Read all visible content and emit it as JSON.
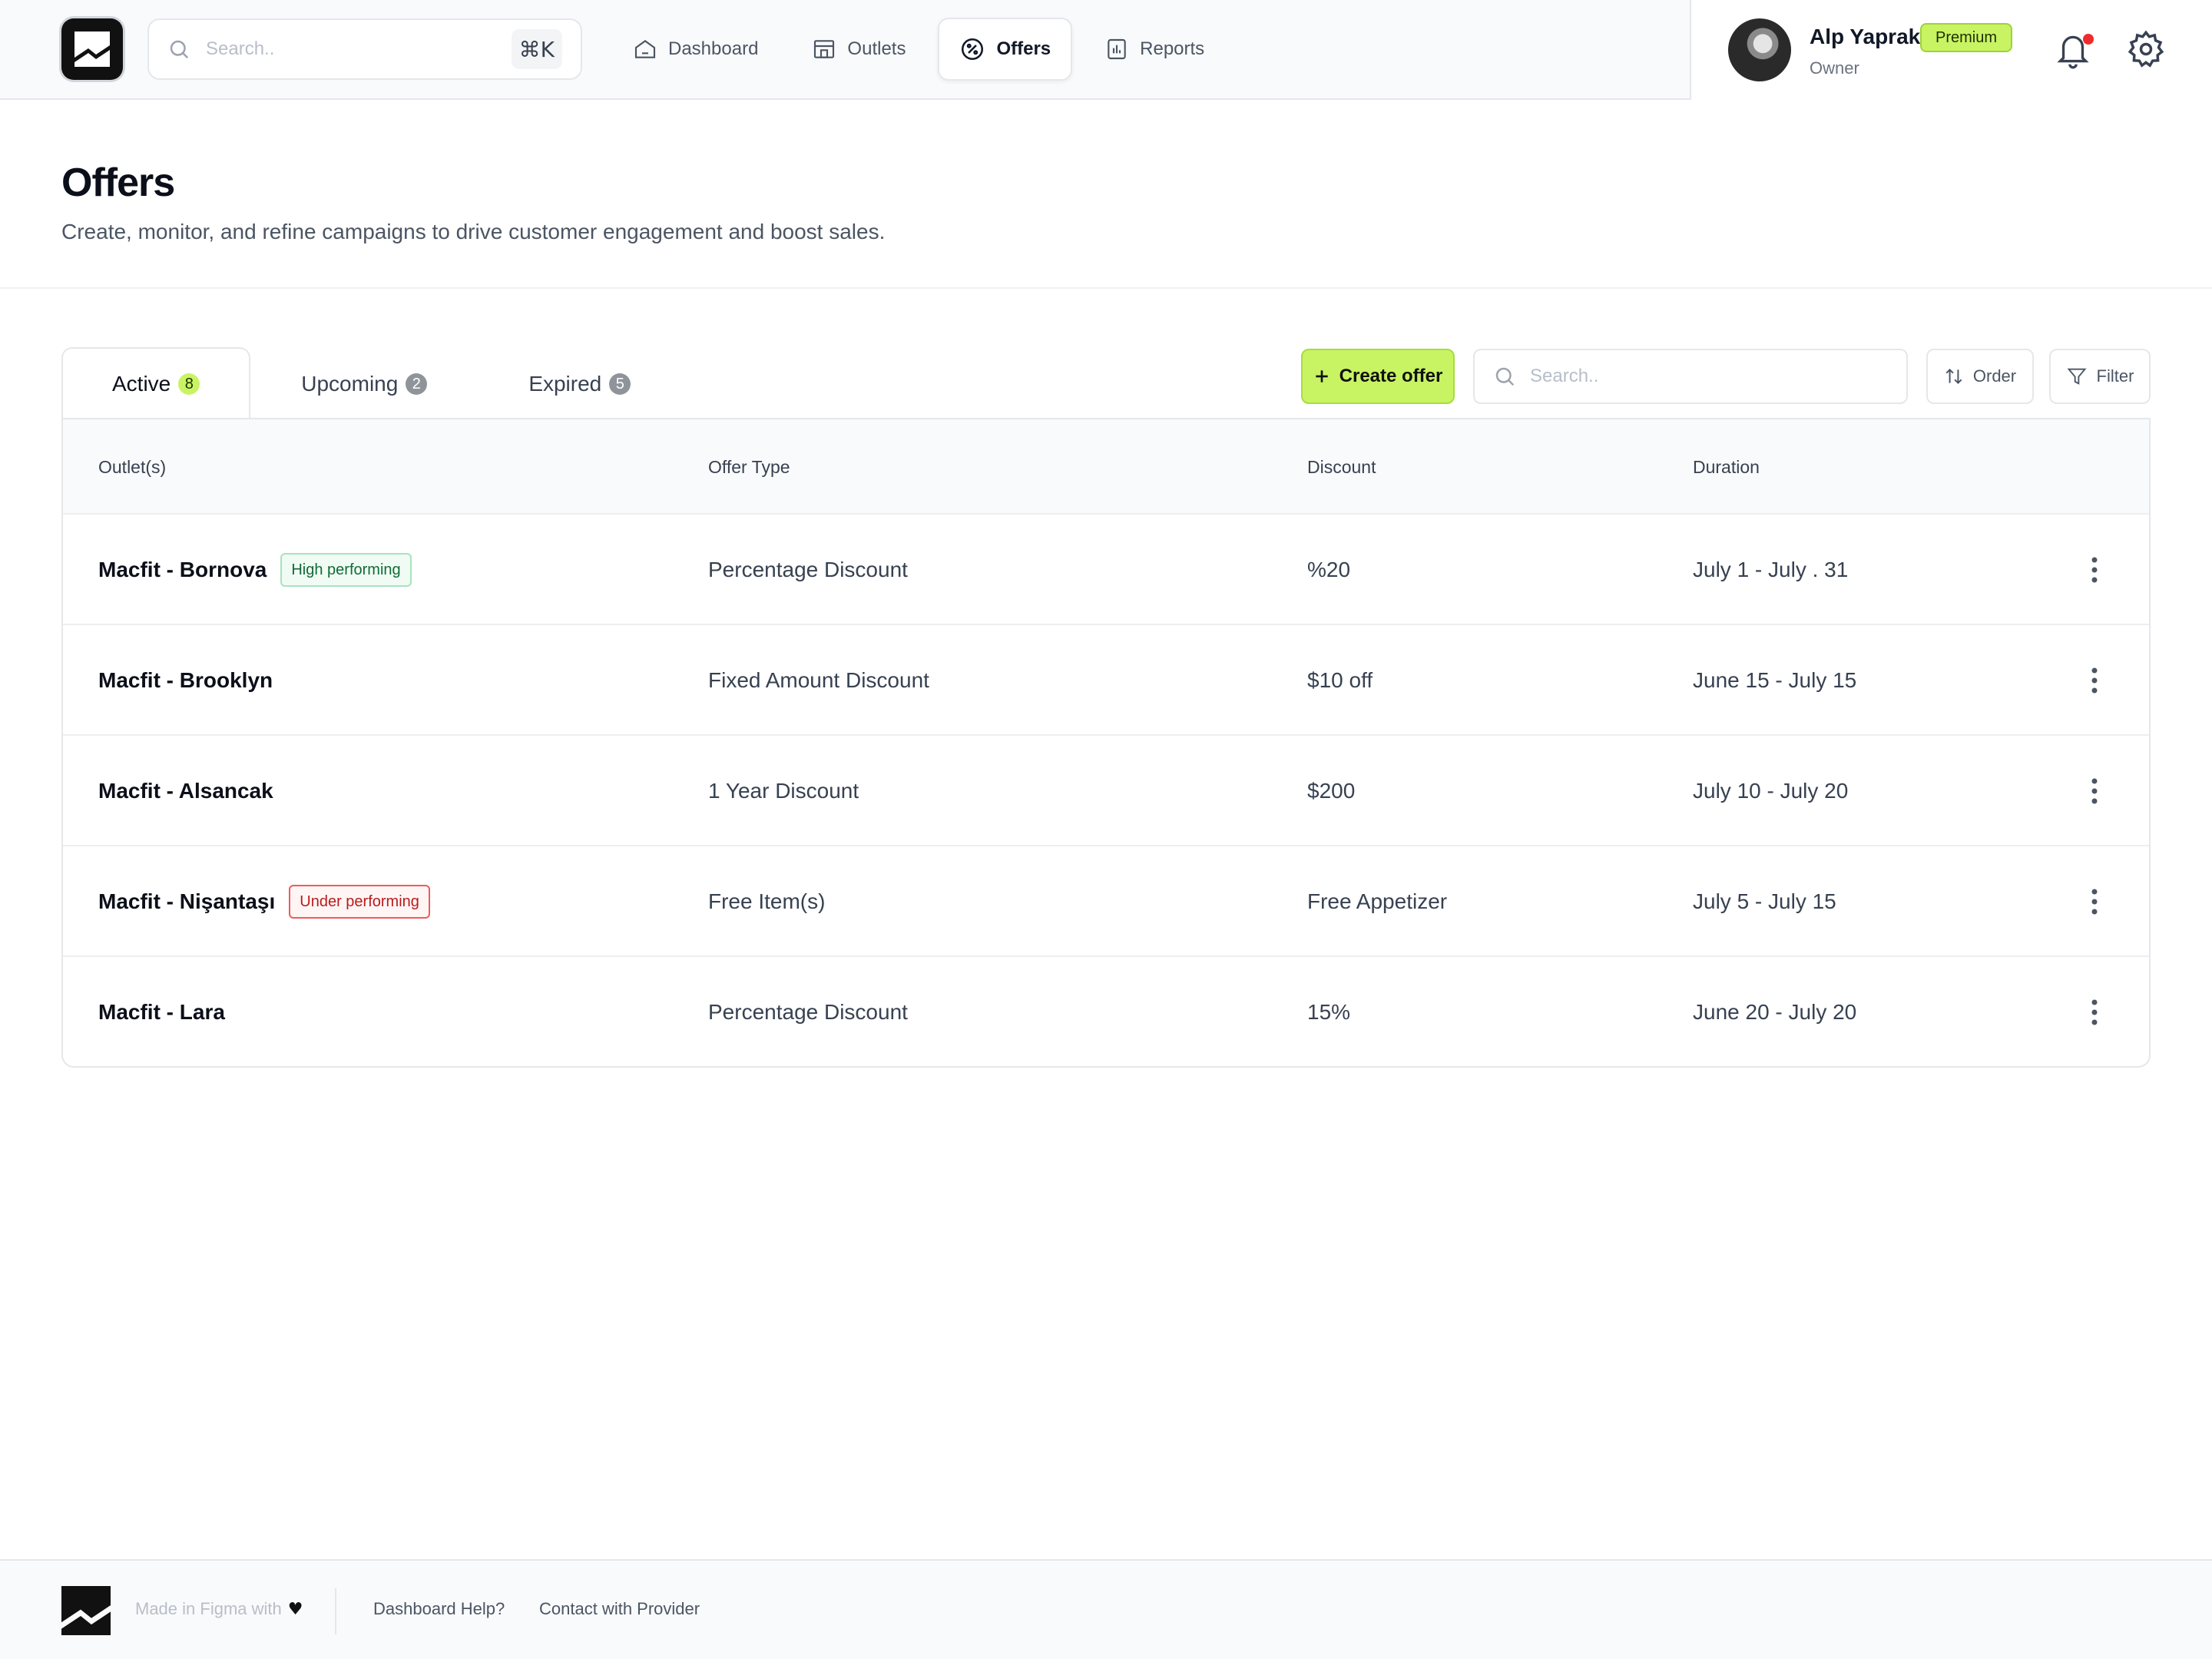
{
  "topbar": {
    "search_placeholder": "Search..",
    "shortcut": "⌘K",
    "nav": [
      {
        "label": "Dashboard",
        "icon": "home-icon",
        "active": false
      },
      {
        "label": "Outlets",
        "icon": "store-icon",
        "active": false
      },
      {
        "label": "Offers",
        "icon": "percent-badge-icon",
        "active": true
      },
      {
        "label": "Reports",
        "icon": "bar-chart-icon",
        "active": false
      }
    ],
    "user": {
      "name": "Alp Yaprak",
      "badge": "Premium",
      "role": "Owner"
    }
  },
  "header": {
    "title": "Offers",
    "subtitle": "Create, monitor, and refine campaigns to drive customer engagement and boost sales."
  },
  "tabs": [
    {
      "label": "Active",
      "count": "8",
      "active": true
    },
    {
      "label": "Upcoming",
      "count": "2",
      "active": false
    },
    {
      "label": "Expired",
      "count": "5",
      "active": false
    }
  ],
  "toolbar": {
    "create_label": "Create offer",
    "search_placeholder": "Search..",
    "order_label": "Order",
    "filter_label": "Filter"
  },
  "table": {
    "columns": [
      "Outlet(s)",
      "Offer Type",
      "Discount",
      "Duration"
    ],
    "rows": [
      {
        "outlet": "Macfit - Bornova",
        "tag": "High performing",
        "offer_type": "Percentage Discount",
        "discount": "%20",
        "duration": "July 1 - July . 31"
      },
      {
        "outlet": "Macfit - Brooklyn",
        "tag": "",
        "offer_type": "Fixed Amount Discount",
        "discount": "$10 off",
        "duration": "June 15 - July 15"
      },
      {
        "outlet": "Macfit - Alsancak",
        "tag": "",
        "offer_type": "1 Year Discount",
        "discount": "$200",
        "duration": "July 10 - July 20"
      },
      {
        "outlet": "Macfit - Nişantaşı",
        "tag": "Under performing",
        "offer_type": "Free Item(s)",
        "discount": "Free Appetizer",
        "duration": "July 5 - July 15"
      },
      {
        "outlet": "Macfit - Lara",
        "tag": "",
        "offer_type": "Percentage Discount",
        "discount": "15%",
        "duration": "June 20 - July 20"
      }
    ]
  },
  "footer": {
    "made_with": "Made in Figma with",
    "links": [
      "Dashboard Help?",
      "Contact with Provider"
    ]
  },
  "colors": {
    "accent": "#c8f463",
    "danger": "#ef5b5b",
    "success": "#0f6b35"
  }
}
